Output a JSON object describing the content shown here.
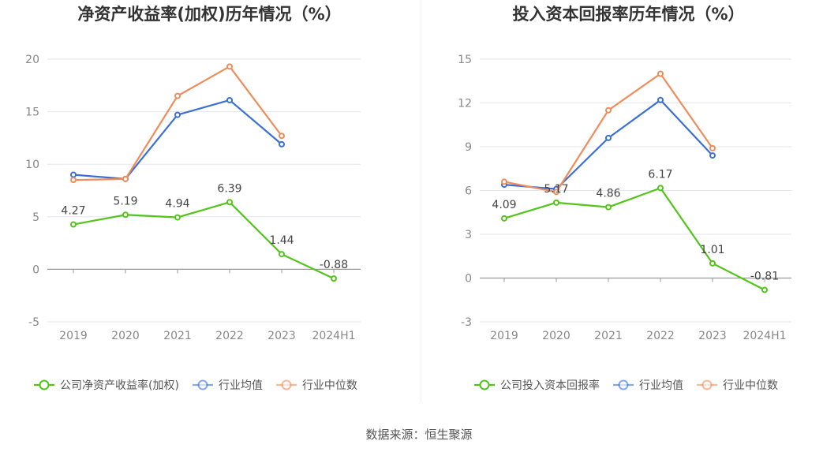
{
  "source": "数据来源：恒生聚源",
  "chart_data": [
    {
      "type": "line",
      "title": "净资产收益率(加权)历年情况（%）",
      "categories": [
        "2019",
        "2020",
        "2021",
        "2022",
        "2023",
        "2024H1"
      ],
      "ylim": [
        -5,
        20
      ],
      "yticks": [
        -5,
        0,
        5,
        10,
        15,
        20
      ],
      "grid": true,
      "legend_position": "bottom",
      "series": [
        {
          "name": "公司净资产收益率(加权)",
          "color": "#52c41a",
          "values": [
            4.27,
            5.19,
            4.94,
            6.39,
            1.44,
            -0.88
          ],
          "labels": [
            "4.27",
            "5.19",
            "4.94",
            "6.39",
            "1.44",
            "-0.88"
          ]
        },
        {
          "name": "行业均值",
          "color": "#3a6fd8",
          "values": [
            9.0,
            8.6,
            14.7,
            16.1,
            11.9,
            null
          ]
        },
        {
          "name": "行业中位数",
          "color": "#f08c5a",
          "values": [
            8.5,
            8.6,
            16.5,
            19.3,
            12.7,
            null
          ]
        }
      ]
    },
    {
      "type": "line",
      "title": "投入资本回报率历年情况（%）",
      "categories": [
        "2019",
        "2020",
        "2021",
        "2022",
        "2023",
        "2024H1"
      ],
      "ylim": [
        -3,
        15
      ],
      "yticks": [
        -3,
        0,
        3,
        6,
        9,
        12,
        15
      ],
      "grid": true,
      "legend_position": "bottom",
      "series": [
        {
          "name": "公司投入资本回报率",
          "color": "#52c41a",
          "values": [
            4.09,
            5.17,
            4.86,
            6.17,
            1.01,
            -0.81
          ],
          "labels": [
            "4.09",
            "5.17",
            "4.86",
            "6.17",
            "1.01",
            "-0.81"
          ]
        },
        {
          "name": "行业均值",
          "color": "#3a6fd8",
          "values": [
            6.4,
            6.1,
            9.6,
            12.2,
            8.4,
            null
          ]
        },
        {
          "name": "行业中位数",
          "color": "#f08c5a",
          "values": [
            6.6,
            5.9,
            11.5,
            14.0,
            8.9,
            null
          ]
        }
      ]
    }
  ]
}
